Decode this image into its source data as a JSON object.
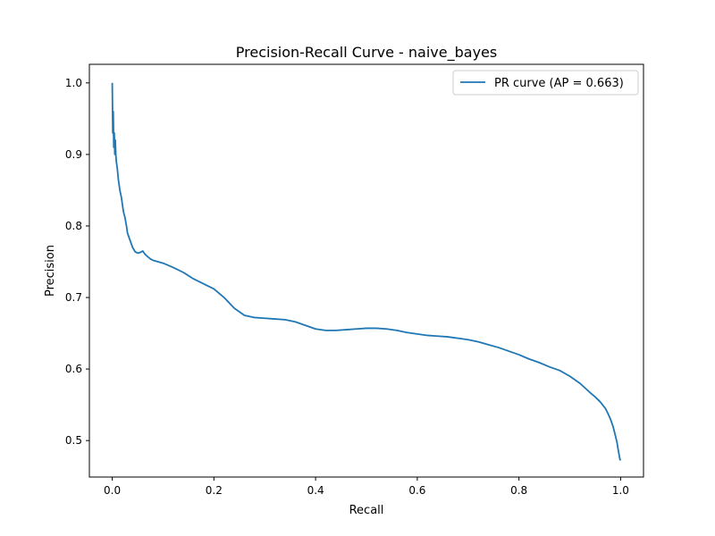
{
  "chart_data": {
    "type": "line",
    "title": "Precision-Recall Curve - naive_bayes",
    "xlabel": "Recall",
    "ylabel": "Precision",
    "xlim": [
      -0.045,
      1.045
    ],
    "ylim": [
      0.449,
      1.026
    ],
    "xticks": [
      0.0,
      0.2,
      0.4,
      0.6,
      0.8,
      1.0
    ],
    "xtick_labels": [
      "0.0",
      "0.2",
      "0.4",
      "0.6",
      "0.8",
      "1.0"
    ],
    "yticks": [
      0.5,
      0.6,
      0.7,
      0.8,
      0.9,
      1.0
    ],
    "ytick_labels": [
      "0.5",
      "0.6",
      "0.7",
      "0.8",
      "0.9",
      "1.0"
    ],
    "grid": false,
    "legend_position": "top-right",
    "series": [
      {
        "name": "PR curve (AP = 0.663)",
        "color": "#1f77b4",
        "x": [
          0.0,
          0.001,
          0.002,
          0.003,
          0.004,
          0.005,
          0.006,
          0.007,
          0.008,
          0.01,
          0.012,
          0.015,
          0.018,
          0.02,
          0.022,
          0.025,
          0.028,
          0.03,
          0.035,
          0.04,
          0.045,
          0.05,
          0.055,
          0.06,
          0.065,
          0.07,
          0.075,
          0.08,
          0.09,
          0.1,
          0.12,
          0.14,
          0.16,
          0.18,
          0.2,
          0.22,
          0.24,
          0.26,
          0.28,
          0.3,
          0.32,
          0.34,
          0.36,
          0.38,
          0.4,
          0.42,
          0.44,
          0.46,
          0.48,
          0.5,
          0.52,
          0.54,
          0.56,
          0.58,
          0.6,
          0.62,
          0.64,
          0.66,
          0.68,
          0.7,
          0.72,
          0.74,
          0.76,
          0.78,
          0.8,
          0.82,
          0.84,
          0.86,
          0.88,
          0.9,
          0.92,
          0.94,
          0.95,
          0.96,
          0.97,
          0.975,
          0.98,
          0.985,
          0.99,
          0.993,
          0.995,
          0.997,
          0.998,
          0.999,
          1.0
        ],
        "y": [
          1.0,
          0.93,
          0.96,
          0.91,
          0.93,
          0.9,
          0.92,
          0.9,
          0.89,
          0.88,
          0.865,
          0.85,
          0.84,
          0.83,
          0.82,
          0.812,
          0.8,
          0.79,
          0.78,
          0.77,
          0.764,
          0.762,
          0.763,
          0.765,
          0.76,
          0.757,
          0.754,
          0.752,
          0.75,
          0.748,
          0.742,
          0.735,
          0.726,
          0.719,
          0.712,
          0.7,
          0.685,
          0.675,
          0.672,
          0.671,
          0.67,
          0.669,
          0.666,
          0.661,
          0.656,
          0.654,
          0.654,
          0.655,
          0.656,
          0.657,
          0.657,
          0.656,
          0.654,
          0.651,
          0.649,
          0.647,
          0.646,
          0.645,
          0.643,
          0.641,
          0.638,
          0.634,
          0.63,
          0.625,
          0.62,
          0.614,
          0.609,
          0.603,
          0.598,
          0.59,
          0.58,
          0.567,
          0.561,
          0.554,
          0.545,
          0.538,
          0.53,
          0.52,
          0.506,
          0.497,
          0.488,
          0.48,
          0.476,
          0.473,
          0.474
        ]
      }
    ]
  }
}
